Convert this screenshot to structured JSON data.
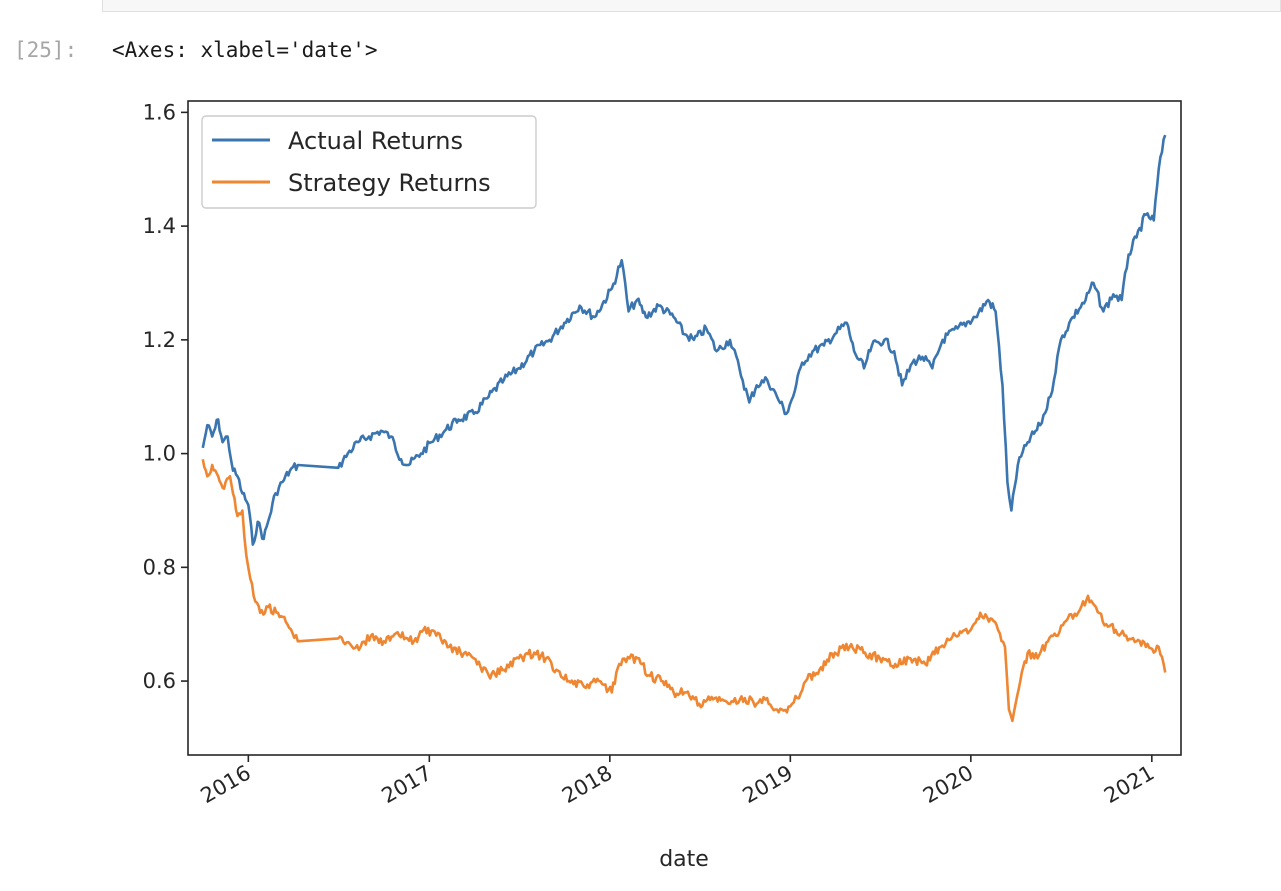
{
  "cell": {
    "prompt": "[25]:",
    "output_text": "<Axes: xlabel='date'>"
  },
  "chart_data": {
    "type": "line",
    "xlabel": "date",
    "ylabel": "",
    "ylim": [
      0.47,
      1.62
    ],
    "xlim": [
      "2015-09-01",
      "2021-03-01"
    ],
    "x_ticks": [
      "2016",
      "2017",
      "2018",
      "2019",
      "2020",
      "2021"
    ],
    "y_ticks": [
      "0.6",
      "0.8",
      "1.0",
      "1.2",
      "1.4",
      "1.6"
    ],
    "legend_position": "upper left",
    "grid": false,
    "series": [
      {
        "name": "Actual Returns",
        "color": "#3b75af",
        "points": [
          [
            "2015-10-01",
            1.01
          ],
          [
            "2015-10-10",
            1.05
          ],
          [
            "2015-10-20",
            1.03
          ],
          [
            "2015-11-01",
            1.06
          ],
          [
            "2015-11-10",
            1.02
          ],
          [
            "2015-11-20",
            1.03
          ],
          [
            "2015-12-01",
            0.97
          ],
          [
            "2015-12-10",
            0.96
          ],
          [
            "2015-12-20",
            0.93
          ],
          [
            "2016-01-01",
            0.91
          ],
          [
            "2016-01-10",
            0.84
          ],
          [
            "2016-01-20",
            0.88
          ],
          [
            "2016-02-01",
            0.85
          ],
          [
            "2016-02-10",
            0.88
          ],
          [
            "2016-02-25",
            0.93
          ],
          [
            "2016-03-10",
            0.95
          ],
          [
            "2016-03-25",
            0.97
          ],
          [
            "2016-04-10",
            0.98
          ],
          [
            "2016-07-01",
            0.975
          ],
          [
            "2016-07-20",
            1.0
          ],
          [
            "2016-08-10",
            1.02
          ],
          [
            "2016-09-01",
            1.03
          ],
          [
            "2016-09-25",
            1.04
          ],
          [
            "2016-10-15",
            1.03
          ],
          [
            "2016-11-05",
            0.99
          ],
          [
            "2016-11-20",
            0.98
          ],
          [
            "2016-12-15",
            1.0
          ],
          [
            "2017-01-05",
            1.02
          ],
          [
            "2017-02-01",
            1.04
          ],
          [
            "2017-03-01",
            1.06
          ],
          [
            "2017-04-01",
            1.07
          ],
          [
            "2017-05-01",
            1.1
          ],
          [
            "2017-06-01",
            1.13
          ],
          [
            "2017-07-01",
            1.15
          ],
          [
            "2017-08-01",
            1.18
          ],
          [
            "2017-09-01",
            1.2
          ],
          [
            "2017-10-01",
            1.23
          ],
          [
            "2017-11-01",
            1.26
          ],
          [
            "2017-12-01",
            1.24
          ],
          [
            "2018-01-05",
            1.29
          ],
          [
            "2018-01-25",
            1.34
          ],
          [
            "2018-02-08",
            1.25
          ],
          [
            "2018-02-25",
            1.27
          ],
          [
            "2018-03-15",
            1.24
          ],
          [
            "2018-04-10",
            1.26
          ],
          [
            "2018-05-10",
            1.24
          ],
          [
            "2018-06-01",
            1.21
          ],
          [
            "2018-06-20",
            1.2
          ],
          [
            "2018-07-15",
            1.22
          ],
          [
            "2018-08-05",
            1.18
          ],
          [
            "2018-09-01",
            1.2
          ],
          [
            "2018-09-20",
            1.15
          ],
          [
            "2018-10-10",
            1.09
          ],
          [
            "2018-10-25",
            1.12
          ],
          [
            "2018-11-15",
            1.13
          ],
          [
            "2018-12-05",
            1.1
          ],
          [
            "2018-12-24",
            1.07
          ],
          [
            "2019-01-10",
            1.11
          ],
          [
            "2019-01-25",
            1.16
          ],
          [
            "2019-02-15",
            1.18
          ],
          [
            "2019-03-10",
            1.19
          ],
          [
            "2019-04-01",
            1.21
          ],
          [
            "2019-04-25",
            1.23
          ],
          [
            "2019-05-10",
            1.18
          ],
          [
            "2019-05-30",
            1.15
          ],
          [
            "2019-06-15",
            1.19
          ],
          [
            "2019-07-10",
            1.2
          ],
          [
            "2019-07-30",
            1.18
          ],
          [
            "2019-08-15",
            1.12
          ],
          [
            "2019-09-05",
            1.16
          ],
          [
            "2019-09-25",
            1.17
          ],
          [
            "2019-10-15",
            1.15
          ],
          [
            "2019-11-05",
            1.2
          ],
          [
            "2019-12-05",
            1.22
          ],
          [
            "2020-01-10",
            1.24
          ],
          [
            "2020-02-05",
            1.27
          ],
          [
            "2020-02-20",
            1.25
          ],
          [
            "2020-03-05",
            1.12
          ],
          [
            "2020-03-15",
            0.95
          ],
          [
            "2020-03-23",
            0.9
          ],
          [
            "2020-04-05",
            0.98
          ],
          [
            "2020-04-25",
            1.02
          ],
          [
            "2020-05-20",
            1.05
          ],
          [
            "2020-06-10",
            1.1
          ],
          [
            "2020-07-01",
            1.2
          ],
          [
            "2020-07-25",
            1.24
          ],
          [
            "2020-08-20",
            1.27
          ],
          [
            "2020-09-05",
            1.3
          ],
          [
            "2020-09-25",
            1.25
          ],
          [
            "2020-10-15",
            1.28
          ],
          [
            "2020-11-01",
            1.27
          ],
          [
            "2020-11-15",
            1.35
          ],
          [
            "2020-12-01",
            1.38
          ],
          [
            "2020-12-20",
            1.42
          ],
          [
            "2021-01-05",
            1.41
          ],
          [
            "2021-01-15",
            1.5
          ],
          [
            "2021-01-28",
            1.56
          ]
        ]
      },
      {
        "name": "Strategy Returns",
        "color": "#ee8632",
        "points": [
          [
            "2015-10-01",
            0.99
          ],
          [
            "2015-10-10",
            0.96
          ],
          [
            "2015-10-20",
            0.98
          ],
          [
            "2015-11-01",
            0.96
          ],
          [
            "2015-11-10",
            0.94
          ],
          [
            "2015-11-25",
            0.96
          ],
          [
            "2015-12-01",
            0.93
          ],
          [
            "2015-12-10",
            0.89
          ],
          [
            "2015-12-20",
            0.9
          ],
          [
            "2015-12-28",
            0.82
          ],
          [
            "2016-01-05",
            0.78
          ],
          [
            "2016-01-15",
            0.74
          ],
          [
            "2016-01-25",
            0.72
          ],
          [
            "2016-02-10",
            0.73
          ],
          [
            "2016-03-01",
            0.72
          ],
          [
            "2016-03-20",
            0.7
          ],
          [
            "2016-04-10",
            0.67
          ],
          [
            "2016-07-01",
            0.675
          ],
          [
            "2016-07-25",
            0.665
          ],
          [
            "2016-08-15",
            0.66
          ],
          [
            "2016-09-05",
            0.68
          ],
          [
            "2016-10-01",
            0.67
          ],
          [
            "2016-11-01",
            0.68
          ],
          [
            "2016-12-01",
            0.67
          ],
          [
            "2016-12-20",
            0.69
          ],
          [
            "2017-01-15",
            0.68
          ],
          [
            "2017-02-10",
            0.66
          ],
          [
            "2017-03-05",
            0.65
          ],
          [
            "2017-04-01",
            0.64
          ],
          [
            "2017-05-01",
            0.61
          ],
          [
            "2017-06-01",
            0.62
          ],
          [
            "2017-07-01",
            0.64
          ],
          [
            "2017-08-01",
            0.65
          ],
          [
            "2017-08-25",
            0.64
          ],
          [
            "2017-09-15",
            0.62
          ],
          [
            "2017-10-10",
            0.6
          ],
          [
            "2017-11-10",
            0.59
          ],
          [
            "2017-12-10",
            0.6
          ],
          [
            "2018-01-05",
            0.58
          ],
          [
            "2018-01-20",
            0.63
          ],
          [
            "2018-02-10",
            0.64
          ],
          [
            "2018-03-01",
            0.64
          ],
          [
            "2018-03-20",
            0.61
          ],
          [
            "2018-04-15",
            0.6
          ],
          [
            "2018-05-10",
            0.58
          ],
          [
            "2018-06-01",
            0.58
          ],
          [
            "2018-07-01",
            0.56
          ],
          [
            "2018-08-01",
            0.57
          ],
          [
            "2018-09-01",
            0.56
          ],
          [
            "2018-10-01",
            0.57
          ],
          [
            "2018-10-25",
            0.56
          ],
          [
            "2018-11-15",
            0.57
          ],
          [
            "2018-12-05",
            0.55
          ],
          [
            "2018-12-25",
            0.545
          ],
          [
            "2019-01-15",
            0.57
          ],
          [
            "2019-02-01",
            0.6
          ],
          [
            "2019-03-01",
            0.62
          ],
          [
            "2019-04-01",
            0.65
          ],
          [
            "2019-05-01",
            0.66
          ],
          [
            "2019-06-01",
            0.65
          ],
          [
            "2019-07-01",
            0.64
          ],
          [
            "2019-08-01",
            0.63
          ],
          [
            "2019-09-01",
            0.64
          ],
          [
            "2019-10-01",
            0.63
          ],
          [
            "2019-11-01",
            0.66
          ],
          [
            "2019-12-01",
            0.68
          ],
          [
            "2020-01-01",
            0.69
          ],
          [
            "2020-01-20",
            0.72
          ],
          [
            "2020-02-10",
            0.71
          ],
          [
            "2020-02-25",
            0.69
          ],
          [
            "2020-03-10",
            0.66
          ],
          [
            "2020-03-18",
            0.55
          ],
          [
            "2020-03-25",
            0.53
          ],
          [
            "2020-04-10",
            0.6
          ],
          [
            "2020-04-25",
            0.65
          ],
          [
            "2020-05-15",
            0.64
          ],
          [
            "2020-06-05",
            0.67
          ],
          [
            "2020-06-25",
            0.68
          ],
          [
            "2020-07-15",
            0.71
          ],
          [
            "2020-08-05",
            0.72
          ],
          [
            "2020-08-25",
            0.75
          ],
          [
            "2020-09-10",
            0.73
          ],
          [
            "2020-10-01",
            0.7
          ],
          [
            "2020-10-20",
            0.69
          ],
          [
            "2020-11-10",
            0.68
          ],
          [
            "2020-12-01",
            0.67
          ],
          [
            "2020-12-20",
            0.66
          ],
          [
            "2021-01-05",
            0.65
          ],
          [
            "2021-01-15",
            0.66
          ],
          [
            "2021-01-28",
            0.615
          ]
        ]
      }
    ]
  }
}
